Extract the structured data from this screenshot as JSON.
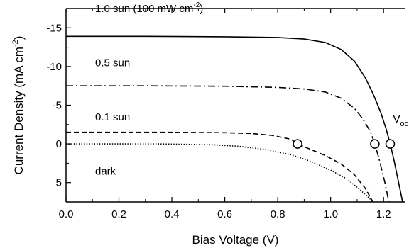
{
  "chart_data": {
    "type": "line",
    "xlabel": "Bias Voltage (V)",
    "ylabel": {
      "main": "Current Density (mA cm",
      "sup": "-2",
      "close": ")"
    },
    "xlim": [
      0.0,
      1.28
    ],
    "ylim": [
      -17.5,
      7.5
    ],
    "y_axis_inverted": true,
    "x_ticks": [
      {
        "value": 0.0,
        "label": "0.0"
      },
      {
        "value": 0.2,
        "label": "0.2"
      },
      {
        "value": 0.4,
        "label": "0.4"
      },
      {
        "value": 0.6,
        "label": "0.6"
      },
      {
        "value": 0.8,
        "label": "0.8"
      },
      {
        "value": 1.0,
        "label": "1.0"
      },
      {
        "value": 1.2,
        "label": "1.2"
      }
    ],
    "y_ticks": [
      {
        "value": -15,
        "label": "-15"
      },
      {
        "value": -10,
        "label": "-10"
      },
      {
        "value": -5,
        "label": "-5"
      },
      {
        "value": 0,
        "label": "0"
      },
      {
        "value": 5,
        "label": "5"
      }
    ],
    "grid": false,
    "legend": "none",
    "series": [
      {
        "label": {
          "main": "1.0 sun (100 mW cm",
          "sup": "-2",
          "close": ")"
        },
        "dash": "solid",
        "color": "#000000",
        "label_at": [
          0.11,
          -17.5
        ],
        "points": [
          [
            0.0,
            -13.9
          ],
          [
            0.3,
            -13.9
          ],
          [
            0.6,
            -13.85
          ],
          [
            0.8,
            -13.75
          ],
          [
            0.9,
            -13.55
          ],
          [
            0.98,
            -13.1
          ],
          [
            1.04,
            -12.2
          ],
          [
            1.09,
            -10.7
          ],
          [
            1.13,
            -8.6
          ],
          [
            1.16,
            -6.5
          ],
          [
            1.19,
            -4.0
          ],
          [
            1.21,
            -1.9
          ],
          [
            1.225,
            0.0
          ],
          [
            1.24,
            2.2
          ],
          [
            1.26,
            5.5
          ],
          [
            1.272,
            7.5
          ]
        ]
      },
      {
        "label": {
          "main": "0.5 sun"
        },
        "dash": "dashdot",
        "color": "#000000",
        "label_at": [
          0.11,
          -10.5
        ],
        "points": [
          [
            0.0,
            -7.5
          ],
          [
            0.3,
            -7.5
          ],
          [
            0.6,
            -7.45
          ],
          [
            0.8,
            -7.3
          ],
          [
            0.9,
            -7.1
          ],
          [
            0.98,
            -6.7
          ],
          [
            1.04,
            -5.9
          ],
          [
            1.09,
            -4.6
          ],
          [
            1.12,
            -3.3
          ],
          [
            1.15,
            -1.6
          ],
          [
            1.167,
            0.0
          ],
          [
            1.185,
            2.2
          ],
          [
            1.205,
            5.0
          ],
          [
            1.22,
            7.5
          ]
        ]
      },
      {
        "label": {
          "main": "0.1 sun"
        },
        "dash": "dashed",
        "color": "#000000",
        "label_at": [
          0.11,
          -3.5
        ],
        "points": [
          [
            0.0,
            -1.5
          ],
          [
            0.4,
            -1.5
          ],
          [
            0.6,
            -1.45
          ],
          [
            0.7,
            -1.35
          ],
          [
            0.78,
            -1.1
          ],
          [
            0.85,
            -0.6
          ],
          [
            0.875,
            0.0
          ],
          [
            0.92,
            0.65
          ],
          [
            0.98,
            1.5
          ],
          [
            1.04,
            2.6
          ],
          [
            1.09,
            4.0
          ],
          [
            1.13,
            5.7
          ],
          [
            1.16,
            7.5
          ]
        ]
      },
      {
        "label": {
          "main": "dark"
        },
        "dash": "dotted",
        "color": "#000000",
        "label_at": [
          0.11,
          3.5
        ],
        "points": [
          [
            0.0,
            0.0
          ],
          [
            0.35,
            0.0
          ],
          [
            0.55,
            0.1
          ],
          [
            0.65,
            0.3
          ],
          [
            0.75,
            0.7
          ],
          [
            0.85,
            1.4
          ],
          [
            0.92,
            2.2
          ],
          [
            1.0,
            3.4
          ],
          [
            1.06,
            4.5
          ],
          [
            1.1,
            5.6
          ],
          [
            1.14,
            6.8
          ],
          [
            1.16,
            7.5
          ]
        ]
      }
    ],
    "markers": [
      {
        "x": 0.875,
        "y": 0.0,
        "shape": "open-circle"
      },
      {
        "x": 1.167,
        "y": 0.0,
        "shape": "open-circle"
      },
      {
        "x": 1.225,
        "y": 0.0,
        "shape": "open-circle"
      }
    ],
    "annotations": [
      {
        "main": "V",
        "sub": "oc",
        "at": [
          1.225,
          -3.2
        ]
      }
    ]
  }
}
